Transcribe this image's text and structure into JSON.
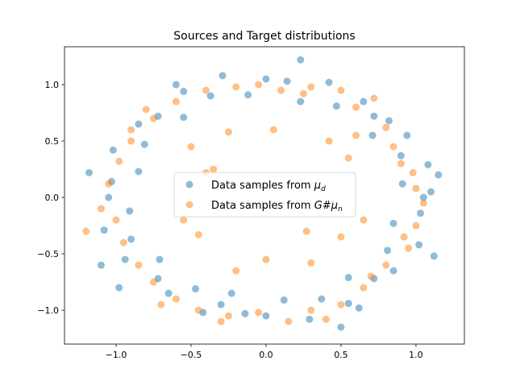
{
  "chart_data": {
    "type": "scatter",
    "title": "Sources and Target distributions",
    "xlabel": "",
    "ylabel": "",
    "xlim": [
      -1.344,
      1.323
    ],
    "ylim": [
      -1.3,
      1.336
    ],
    "xticks": [
      -1.0,
      -0.5,
      0.0,
      0.5,
      1.0
    ],
    "xtick_labels": [
      "−1.0",
      "−0.5",
      "0.0",
      "0.5",
      "1.0"
    ],
    "yticks": [
      -1.0,
      -0.5,
      0.0,
      0.5,
      1.0
    ],
    "ytick_labels": [
      "−1.0",
      "−0.5",
      "0.0",
      "0.5",
      "1.0"
    ],
    "grid": false,
    "legend_position": "center",
    "series": [
      {
        "name": "Data samples from μ_d",
        "legend_prefix": "Data samples from ",
        "legend_math": "μ",
        "legend_sub": "d",
        "color": "#1f77b4",
        "alpha": 0.5,
        "points": [
          [
            1.05,
            0.0
          ],
          [
            0.91,
            0.12
          ],
          [
            1.08,
            0.29
          ],
          [
            0.9,
            0.37
          ],
          [
            0.94,
            0.55
          ],
          [
            0.71,
            0.55
          ],
          [
            0.72,
            0.72
          ],
          [
            0.65,
            0.85
          ],
          [
            0.47,
            0.81
          ],
          [
            0.42,
            1.02
          ],
          [
            0.23,
            0.85
          ],
          [
            0.14,
            1.03
          ],
          [
            0.0,
            1.05
          ],
          [
            -0.12,
            0.91
          ],
          [
            -0.29,
            1.08
          ],
          [
            -0.37,
            0.9
          ],
          [
            -0.55,
            0.94
          ],
          [
            -0.55,
            0.71
          ],
          [
            -0.72,
            0.72
          ],
          [
            -0.85,
            0.65
          ],
          [
            -0.81,
            0.47
          ],
          [
            -1.02,
            0.42
          ],
          [
            -0.85,
            0.23
          ],
          [
            -1.03,
            0.14
          ],
          [
            -1.05,
            0.0
          ],
          [
            -0.91,
            -0.12
          ],
          [
            -1.08,
            -0.29
          ],
          [
            -0.9,
            -0.37
          ],
          [
            -0.94,
            -0.55
          ],
          [
            -0.71,
            -0.55
          ],
          [
            -0.72,
            -0.72
          ],
          [
            -0.65,
            -0.85
          ],
          [
            -0.47,
            -0.81
          ],
          [
            -0.42,
            -1.02
          ],
          [
            -0.23,
            -0.85
          ],
          [
            -0.14,
            -1.03
          ],
          [
            0.0,
            -1.05
          ],
          [
            0.12,
            -0.91
          ],
          [
            0.29,
            -1.08
          ],
          [
            0.37,
            -0.9
          ],
          [
            0.55,
            -0.94
          ],
          [
            0.55,
            -0.71
          ],
          [
            0.72,
            -0.72
          ],
          [
            0.85,
            -0.65
          ],
          [
            0.81,
            -0.47
          ],
          [
            1.02,
            -0.42
          ],
          [
            0.85,
            -0.23
          ],
          [
            1.03,
            -0.14
          ],
          [
            1.15,
            0.2
          ],
          [
            -1.18,
            0.22
          ],
          [
            0.23,
            1.22
          ],
          [
            0.5,
            -1.15
          ],
          [
            1.12,
            -0.52
          ],
          [
            -1.1,
            -0.6
          ],
          [
            0.82,
            0.68
          ],
          [
            -0.6,
            1.0
          ],
          [
            -0.3,
            -0.95
          ],
          [
            0.62,
            -0.98
          ],
          [
            -0.98,
            -0.8
          ],
          [
            1.1,
            0.05
          ]
        ]
      },
      {
        "name": "Data samples from G#μ_n",
        "legend_prefix": "Data samples from ",
        "legend_math": "G#μ",
        "legend_sub": "n",
        "color": "#ff7f0e",
        "alpha": 0.5,
        "points": [
          [
            1.0,
            0.08
          ],
          [
            0.98,
            0.22
          ],
          [
            0.85,
            0.45
          ],
          [
            0.8,
            0.62
          ],
          [
            0.6,
            0.8
          ],
          [
            0.5,
            0.95
          ],
          [
            0.3,
            0.98
          ],
          [
            0.1,
            0.95
          ],
          [
            -0.05,
            1.0
          ],
          [
            -0.2,
            0.98
          ],
          [
            -0.4,
            0.95
          ],
          [
            -0.6,
            0.85
          ],
          [
            -0.75,
            0.7
          ],
          [
            -0.9,
            0.5
          ],
          [
            -0.98,
            0.32
          ],
          [
            -1.05,
            0.12
          ],
          [
            -1.2,
            -0.3
          ],
          [
            -1.0,
            -0.2
          ],
          [
            -0.95,
            -0.4
          ],
          [
            -0.85,
            -0.6
          ],
          [
            -0.75,
            -0.75
          ],
          [
            -0.6,
            -0.9
          ],
          [
            -0.45,
            -1.0
          ],
          [
            -0.25,
            -1.05
          ],
          [
            -0.05,
            -1.02
          ],
          [
            0.15,
            -1.1
          ],
          [
            0.3,
            -1.0
          ],
          [
            0.5,
            -0.95
          ],
          [
            0.65,
            -0.8
          ],
          [
            0.8,
            -0.6
          ],
          [
            0.95,
            -0.45
          ],
          [
            1.0,
            -0.25
          ],
          [
            1.05,
            -0.05
          ],
          [
            0.9,
            0.3
          ],
          [
            0.72,
            0.88
          ],
          [
            -0.8,
            0.78
          ],
          [
            -1.1,
            -0.1
          ],
          [
            -0.7,
            -0.95
          ],
          [
            0.4,
            -1.08
          ],
          [
            0.92,
            -0.35
          ],
          [
            -0.4,
            0.22
          ],
          [
            -0.35,
            0.25
          ],
          [
            0.42,
            0.5
          ],
          [
            0.55,
            0.35
          ],
          [
            -0.25,
            0.58
          ],
          [
            0.05,
            0.6
          ],
          [
            -0.45,
            -0.33
          ],
          [
            -0.55,
            -0.2
          ],
          [
            0.27,
            -0.3
          ],
          [
            0.5,
            -0.35
          ],
          [
            0.0,
            -0.55
          ],
          [
            -0.2,
            -0.65
          ],
          [
            0.3,
            -0.58
          ],
          [
            0.6,
            0.55
          ],
          [
            -0.5,
            0.45
          ],
          [
            0.65,
            -0.2
          ],
          [
            0.25,
            0.92
          ],
          [
            -0.9,
            0.6
          ],
          [
            -0.3,
            -1.1
          ],
          [
            0.7,
            -0.7
          ]
        ]
      }
    ]
  }
}
